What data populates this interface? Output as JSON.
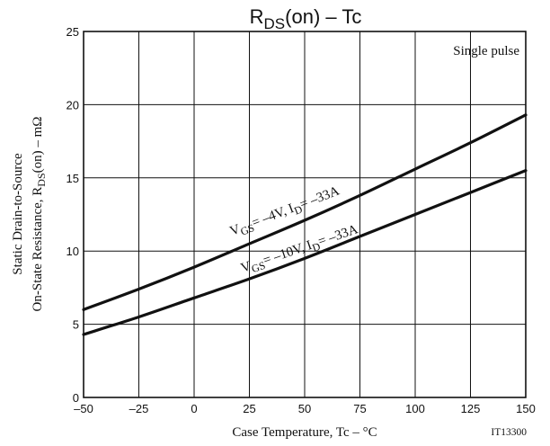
{
  "chart_data": {
    "type": "line",
    "title": "RDS(on) – Tc",
    "title_parts": {
      "main": "R",
      "sub": "DS",
      "rest": "(on)  –  Tc"
    },
    "xlabel": "Case Temperature, Tc  –  °C",
    "ylabel_line1": "Static Drain-to-Source",
    "ylabel_line2": "On-State Resistance, RDS(on)  –  mΩ",
    "ylabel_parts": {
      "pre": "On-State Resistance, R",
      "sub": "DS",
      "post": "(on)  –  mΩ"
    },
    "xlim": [
      -50,
      150
    ],
    "ylim": [
      0,
      25
    ],
    "x_ticks": [
      -50,
      -25,
      0,
      25,
      50,
      75,
      100,
      125,
      150
    ],
    "y_ticks": [
      0,
      5,
      10,
      15,
      20,
      25
    ],
    "x_tick_labels": [
      "–50",
      "–25",
      "0",
      "25",
      "50",
      "75",
      "100",
      "125",
      "150"
    ],
    "y_tick_labels": [
      "0",
      "5",
      "10",
      "15",
      "20",
      "25"
    ],
    "grid": true,
    "annotation": "Single pulse",
    "figure_id": "IT13300",
    "series": [
      {
        "name": "VGS= –4V, ID= –33A",
        "label_parts": {
          "a": "V",
          "a_sub": "GS",
          "b": "= –4V, I",
          "b_sub": "D",
          "c": "= –33A"
        },
        "x": [
          -50,
          -25,
          0,
          25,
          50,
          75,
          100,
          125,
          150
        ],
        "values": [
          6.0,
          7.4,
          8.9,
          10.5,
          12.1,
          13.8,
          15.6,
          17.4,
          19.3
        ]
      },
      {
        "name": "VGS= –10V, ID= –33A",
        "label_parts": {
          "a": "V",
          "a_sub": "GS",
          "b": "= –10V, I",
          "b_sub": "D",
          "c": "= –33A"
        },
        "x": [
          -50,
          -25,
          0,
          25,
          50,
          75,
          100,
          125,
          150
        ],
        "values": [
          4.3,
          5.5,
          6.8,
          8.1,
          9.5,
          11.0,
          12.5,
          14.0,
          15.5
        ]
      }
    ]
  }
}
